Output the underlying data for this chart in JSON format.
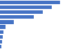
{
  "values": [
    870,
    750,
    620,
    490,
    200,
    75,
    50,
    35,
    25,
    15
  ],
  "bar_color": "#4472c4",
  "background_color": "#f2f2f2",
  "plot_background": "#ffffff",
  "gridline_color": "#c8c8c8",
  "bar_height": 0.72,
  "xlim": [
    0,
    1000
  ],
  "n_bars": 10
}
